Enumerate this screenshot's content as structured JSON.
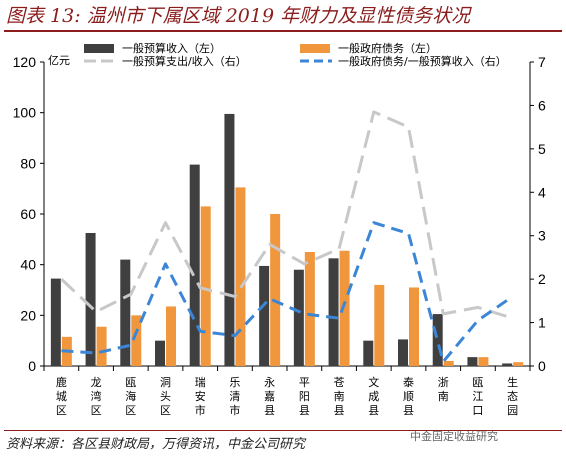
{
  "title": "图表 13: 温州市下属区域 2019 年财力及显性债务状况",
  "source": "资料来源：各区县财政局，万得资讯，中金公司研究",
  "watermark": "中金固定收益研究",
  "chart_data": {
    "type": "bar",
    "categories": [
      "鹿城区",
      "龙湾区",
      "瓯海区",
      "洞头区",
      "瑞安市",
      "乐清市",
      "永嘉县",
      "平阳县",
      "苍南县",
      "文成县",
      "泰顺县",
      "浙南",
      "瓯江口",
      "生态园"
    ],
    "ylabel_left": "亿元",
    "ylim_left": [
      0,
      120
    ],
    "yticks_left": [
      0,
      20,
      40,
      60,
      80,
      100,
      120
    ],
    "ylim_right": [
      0,
      7
    ],
    "yticks_right": [
      0,
      1,
      2,
      3,
      4,
      5,
      6,
      7
    ],
    "series": [
      {
        "name": "一般预算收入（左）",
        "kind": "bar",
        "axis": "left",
        "color": "#3f3f3f",
        "values": [
          34.5,
          52.5,
          42,
          10,
          79.5,
          99.5,
          39.5,
          38,
          42.5,
          10,
          10.5,
          20.5,
          3.5,
          1
        ]
      },
      {
        "name": "一般政府债务（左）",
        "kind": "bar",
        "axis": "left",
        "color": "#f0973e",
        "values": [
          11.5,
          15.5,
          20,
          23.5,
          63,
          70.5,
          60,
          45,
          45.5,
          32,
          31,
          2,
          3.5,
          1.5
        ]
      },
      {
        "name": "一般预算支出/收入（右）",
        "kind": "line",
        "axis": "right",
        "color": "#c8c8c8",
        "dash": "long",
        "values": [
          2.0,
          1.25,
          1.65,
          3.3,
          1.8,
          1.6,
          2.8,
          2.35,
          2.7,
          5.85,
          5.5,
          1.2,
          1.35,
          1.1
        ]
      },
      {
        "name": "一般政府债务/一般预算收入（右）",
        "kind": "line",
        "axis": "right",
        "color": "#3b86d6",
        "dash": "medium",
        "values": [
          0.35,
          0.3,
          0.48,
          2.35,
          0.8,
          0.7,
          1.55,
          1.2,
          1.1,
          3.3,
          3.05,
          0.1,
          1.05,
          1.6
        ]
      }
    ]
  }
}
